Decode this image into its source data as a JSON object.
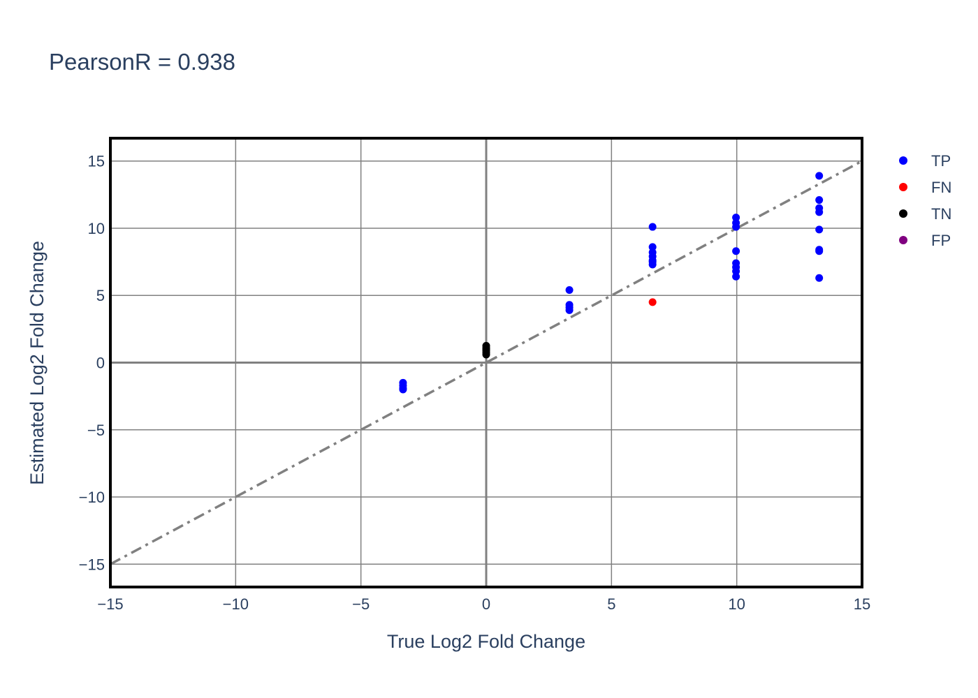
{
  "chart_data": {
    "type": "scatter",
    "title": "PearsonR = 0.938",
    "xlabel": "True Log2 Fold Change",
    "ylabel": "Estimated Log2 Fold Change",
    "xlim": [
      -15,
      15
    ],
    "ylim": [
      -16.7,
      16.7
    ],
    "xticks": [
      -15,
      -10,
      -5,
      0,
      5,
      10,
      15
    ],
    "yticks": [
      -15,
      -10,
      -5,
      0,
      5,
      10,
      15
    ],
    "xtick_labels": [
      "−15",
      "−10",
      "−5",
      "0",
      "5",
      "10",
      "15"
    ],
    "ytick_labels": [
      "−15",
      "−10",
      "−5",
      "0",
      "5",
      "10",
      "15"
    ],
    "grid": true,
    "legend_position": "right",
    "reference_line": {
      "x": [
        -15,
        15
      ],
      "y": [
        -15,
        15
      ],
      "style": "dashdot",
      "color": "#808080"
    },
    "series": [
      {
        "name": "TP",
        "color": "#0000ff",
        "x": [
          -3.32,
          -3.32,
          -3.32,
          -3.32,
          3.32,
          3.32,
          3.32,
          3.32,
          6.64,
          6.64,
          6.64,
          6.64,
          6.64,
          6.64,
          6.64,
          9.97,
          9.97,
          9.97,
          9.97,
          9.97,
          9.97,
          9.97,
          9.97,
          13.29,
          13.29,
          13.29,
          13.29,
          13.29,
          13.29,
          13.29,
          13.29
        ],
        "y": [
          -1.5,
          -1.7,
          -1.9,
          -2.0,
          5.4,
          4.3,
          4.1,
          3.9,
          10.1,
          8.6,
          8.2,
          7.9,
          7.6,
          7.3,
          7.5,
          10.8,
          10.4,
          10.1,
          8.3,
          7.4,
          7.1,
          6.8,
          6.4,
          13.9,
          12.1,
          11.5,
          11.2,
          9.9,
          8.4,
          8.3,
          6.3
        ]
      },
      {
        "name": "FN",
        "color": "#ff0000",
        "x": [
          6.64
        ],
        "y": [
          4.5
        ]
      },
      {
        "name": "TN",
        "color": "#000000",
        "x": [
          0,
          0,
          0,
          0,
          0,
          0
        ],
        "y": [
          1.25,
          1.1,
          1.0,
          0.9,
          0.75,
          0.6
        ]
      },
      {
        "name": "FP",
        "color": "#800080",
        "x": [],
        "y": []
      }
    ]
  }
}
